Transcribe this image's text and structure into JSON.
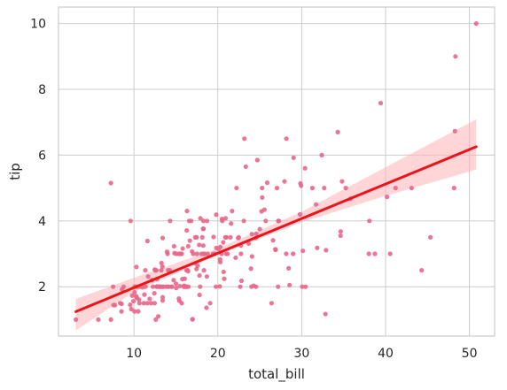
{
  "chart_data": {
    "type": "scatter",
    "title": "",
    "xlabel": "total_bill",
    "ylabel": "tip",
    "xlim": [
      1.0,
      53.0
    ],
    "ylim": [
      0.5,
      10.5
    ],
    "x_ticks": [
      10,
      20,
      30,
      40,
      50
    ],
    "y_ticks": [
      2,
      4,
      6,
      8,
      10
    ],
    "grid": true,
    "colors": {
      "points": "#e8678a",
      "line": "#e8161a",
      "band": "#ffb3b8",
      "grid": "#cccccc",
      "axes": "#cccccc"
    },
    "points": [
      [
        3.07,
        1.0
      ],
      [
        5.75,
        1.0
      ],
      [
        7.25,
        1.0
      ],
      [
        7.25,
        5.15
      ],
      [
        7.51,
        2.0
      ],
      [
        7.56,
        1.44
      ],
      [
        7.74,
        1.44
      ],
      [
        8.35,
        1.5
      ],
      [
        8.51,
        1.25
      ],
      [
        8.52,
        1.48
      ],
      [
        8.58,
        1.92
      ],
      [
        8.77,
        2.0
      ],
      [
        9.55,
        1.45
      ],
      [
        9.6,
        4.0
      ],
      [
        9.68,
        1.32
      ],
      [
        9.78,
        1.73
      ],
      [
        9.94,
        1.56
      ],
      [
        10.07,
        1.83
      ],
      [
        10.07,
        1.25
      ],
      [
        10.09,
        2.0
      ],
      [
        10.27,
        1.71
      ],
      [
        10.29,
        2.6
      ],
      [
        10.33,
        1.67
      ],
      [
        10.33,
        2.0
      ],
      [
        10.34,
        1.66
      ],
      [
        10.34,
        2.0
      ],
      [
        10.51,
        1.25
      ],
      [
        10.59,
        1.61
      ],
      [
        10.63,
        2.0
      ],
      [
        10.65,
        1.5
      ],
      [
        11.02,
        1.98
      ],
      [
        11.17,
        1.5
      ],
      [
        11.24,
        1.76
      ],
      [
        11.35,
        2.5
      ],
      [
        11.38,
        2.0
      ],
      [
        11.59,
        1.5
      ],
      [
        11.61,
        3.39
      ],
      [
        11.69,
        2.31
      ],
      [
        11.87,
        1.63
      ],
      [
        12.03,
        1.5
      ],
      [
        12.16,
        2.2
      ],
      [
        12.26,
        2.0
      ],
      [
        12.43,
        1.8
      ],
      [
        12.46,
        1.5
      ],
      [
        12.48,
        2.52
      ],
      [
        12.54,
        2.5
      ],
      [
        12.6,
        1.0
      ],
      [
        12.66,
        2.5
      ],
      [
        12.69,
        2.0
      ],
      [
        12.74,
        2.01
      ],
      [
        12.76,
        2.23
      ],
      [
        12.9,
        1.1
      ],
      [
        13.0,
        2.0
      ],
      [
        13.03,
        2.0
      ],
      [
        13.13,
        2.0
      ],
      [
        13.16,
        2.0
      ],
      [
        13.27,
        2.5
      ],
      [
        13.28,
        2.72
      ],
      [
        13.37,
        2.0
      ],
      [
        13.39,
        2.61
      ],
      [
        13.42,
        3.48
      ],
      [
        13.42,
        1.68
      ],
      [
        13.42,
        1.58
      ],
      [
        13.51,
        2.0
      ],
      [
        13.81,
        2.0
      ],
      [
        13.94,
        3.06
      ],
      [
        14.0,
        3.0
      ],
      [
        14.06,
        2.0
      ],
      [
        14.07,
        2.5
      ],
      [
        14.15,
        2.0
      ],
      [
        14.26,
        2.5
      ],
      [
        14.31,
        4.0
      ],
      [
        14.48,
        2.0
      ],
      [
        14.52,
        2.0
      ],
      [
        14.73,
        2.2
      ],
      [
        14.78,
        3.23
      ],
      [
        14.83,
        3.02
      ],
      [
        15.01,
        2.09
      ],
      [
        15.04,
        1.96
      ],
      [
        15.06,
        3.0
      ],
      [
        15.36,
        1.64
      ],
      [
        15.38,
        3.0
      ],
      [
        15.42,
        1.57
      ],
      [
        15.48,
        2.02
      ],
      [
        15.53,
        3.0
      ],
      [
        15.69,
        3.0
      ],
      [
        15.69,
        1.5
      ],
      [
        15.77,
        2.23
      ],
      [
        15.81,
        3.16
      ],
      [
        15.95,
        2.0
      ],
      [
        15.98,
        2.03
      ],
      [
        16.0,
        2.0
      ],
      [
        16.04,
        2.24
      ],
      [
        16.21,
        2.0
      ],
      [
        16.27,
        2.5
      ],
      [
        16.29,
        3.71
      ],
      [
        16.31,
        2.0
      ],
      [
        16.32,
        4.3
      ],
      [
        16.4,
        2.5
      ],
      [
        16.45,
        2.47
      ],
      [
        16.47,
        3.23
      ],
      [
        16.49,
        2.0
      ],
      [
        16.58,
        4.0
      ],
      [
        16.66,
        3.4
      ],
      [
        16.82,
        4.0
      ],
      [
        16.93,
        3.07
      ],
      [
        16.97,
        1.01
      ],
      [
        16.99,
        1.01
      ],
      [
        17.07,
        3.0
      ],
      [
        17.29,
        2.71
      ],
      [
        17.31,
        3.5
      ],
      [
        17.46,
        2.54
      ],
      [
        17.47,
        3.5
      ],
      [
        17.51,
        3.0
      ],
      [
        17.59,
        2.64
      ],
      [
        17.78,
        3.27
      ],
      [
        17.81,
        2.34
      ],
      [
        17.82,
        1.75
      ],
      [
        17.89,
        2.0
      ],
      [
        17.92,
        4.08
      ],
      [
        18.04,
        3.0
      ],
      [
        18.15,
        3.5
      ],
      [
        18.24,
        3.76
      ],
      [
        18.26,
        3.25
      ],
      [
        18.28,
        4.0
      ],
      [
        18.29,
        3.0
      ],
      [
        18.29,
        3.76
      ],
      [
        18.35,
        2.5
      ],
      [
        18.43,
        3.0
      ],
      [
        18.64,
        1.36
      ],
      [
        18.69,
        2.31
      ],
      [
        18.71,
        4.0
      ],
      [
        18.78,
        3.0
      ],
      [
        19.08,
        1.5
      ],
      [
        19.44,
        3.0
      ],
      [
        19.49,
        3.51
      ],
      [
        19.65,
        3.0
      ],
      [
        19.77,
        2.0
      ],
      [
        19.81,
        4.19
      ],
      [
        19.82,
        3.18
      ],
      [
        20.08,
        3.15
      ],
      [
        20.23,
        2.01
      ],
      [
        20.27,
        2.83
      ],
      [
        20.29,
        3.21
      ],
      [
        20.29,
        2.75
      ],
      [
        20.45,
        3.0
      ],
      [
        20.49,
        4.06
      ],
      [
        20.53,
        4.0
      ],
      [
        20.65,
        3.35
      ],
      [
        20.69,
        2.45
      ],
      [
        20.76,
        2.24
      ],
      [
        20.9,
        3.5
      ],
      [
        20.92,
        4.08
      ],
      [
        21.01,
        3.5
      ],
      [
        21.01,
        3.0
      ],
      [
        21.16,
        3.0
      ],
      [
        21.5,
        3.5
      ],
      [
        21.58,
        3.92
      ],
      [
        21.7,
        4.3
      ],
      [
        22.12,
        2.88
      ],
      [
        22.23,
        5.0
      ],
      [
        22.42,
        3.48
      ],
      [
        22.49,
        3.5
      ],
      [
        22.67,
        2.0
      ],
      [
        22.75,
        3.25
      ],
      [
        22.76,
        3.0
      ],
      [
        22.82,
        2.18
      ],
      [
        23.1,
        4.0
      ],
      [
        23.17,
        6.5
      ],
      [
        23.33,
        5.65
      ],
      [
        23.68,
        3.31
      ],
      [
        23.95,
        2.55
      ],
      [
        24.01,
        2.0
      ],
      [
        24.06,
        3.6
      ],
      [
        24.08,
        2.92
      ],
      [
        24.27,
        2.03
      ],
      [
        24.52,
        3.48
      ],
      [
        24.55,
        2.0
      ],
      [
        24.59,
        3.61
      ],
      [
        24.71,
        5.85
      ],
      [
        25.0,
        3.75
      ],
      [
        25.21,
        4.29
      ],
      [
        25.28,
        5.0
      ],
      [
        25.29,
        4.71
      ],
      [
        25.56,
        4.34
      ],
      [
        25.71,
        4.0
      ],
      [
        25.89,
        5.16
      ],
      [
        26.41,
        1.5
      ],
      [
        26.59,
        3.41
      ],
      [
        26.86,
        3.14
      ],
      [
        26.88,
        3.12
      ],
      [
        27.05,
        5.0
      ],
      [
        27.18,
        2.0
      ],
      [
        27.2,
        4.0
      ],
      [
        27.28,
        4.0
      ],
      [
        27.95,
        5.2
      ],
      [
        28.15,
        3.0
      ],
      [
        28.17,
        6.5
      ],
      [
        28.44,
        2.56
      ],
      [
        28.55,
        2.05
      ],
      [
        28.97,
        3.0
      ],
      [
        29.03,
        5.92
      ],
      [
        29.8,
        4.2
      ],
      [
        29.85,
        5.14
      ],
      [
        29.93,
        5.07
      ],
      [
        30.06,
        2.0
      ],
      [
        30.14,
        3.09
      ],
      [
        30.4,
        5.6
      ],
      [
        30.46,
        2.0
      ],
      [
        31.27,
        5.0
      ],
      [
        31.71,
        4.5
      ],
      [
        31.85,
        3.18
      ],
      [
        32.4,
        6.0
      ],
      [
        32.68,
        5.0
      ],
      [
        32.83,
        1.17
      ],
      [
        32.9,
        3.11
      ],
      [
        34.3,
        6.7
      ],
      [
        34.63,
        3.55
      ],
      [
        34.65,
        3.68
      ],
      [
        34.81,
        5.2
      ],
      [
        35.26,
        5.0
      ],
      [
        35.83,
        4.67
      ],
      [
        38.01,
        3.0
      ],
      [
        38.07,
        4.0
      ],
      [
        38.73,
        3.0
      ],
      [
        39.42,
        7.58
      ],
      [
        40.17,
        4.73
      ],
      [
        40.55,
        3.0
      ],
      [
        41.19,
        5.0
      ],
      [
        43.11,
        5.0
      ],
      [
        44.3,
        2.5
      ],
      [
        45.35,
        3.5
      ],
      [
        48.17,
        5.0
      ],
      [
        48.27,
        6.73
      ],
      [
        48.33,
        9.0
      ],
      [
        50.81,
        10.0
      ]
    ],
    "regression": {
      "x_range": [
        3.07,
        50.81
      ],
      "intercept": 0.92,
      "slope": 0.105,
      "ci_low": [
        [
          3.07,
          0.67
        ],
        [
          10,
          1.84
        ],
        [
          20,
          2.96
        ],
        [
          30,
          3.96
        ],
        [
          40,
          4.76
        ],
        [
          50,
          5.5
        ],
        [
          50.81,
          5.56
        ]
      ],
      "ci_high": [
        [
          3.07,
          1.63
        ],
        [
          10,
          2.27
        ],
        [
          20,
          3.16
        ],
        [
          30,
          4.28
        ],
        [
          40,
          5.63
        ],
        [
          50,
          6.98
        ],
        [
          50.81,
          7.09
        ]
      ]
    }
  }
}
